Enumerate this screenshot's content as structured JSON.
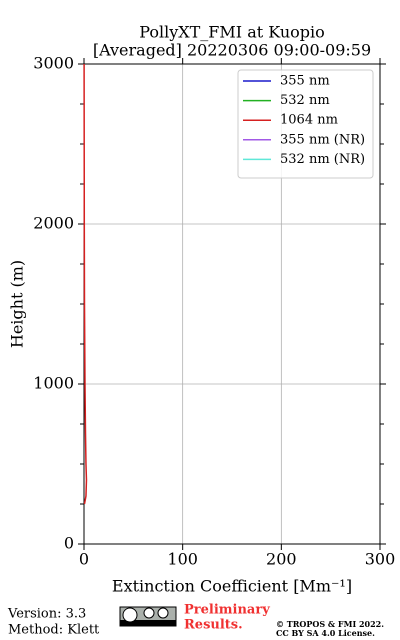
{
  "chart_data": {
    "type": "line",
    "title": "PollyXT_FMI at Kuopio",
    "subtitle": "[Averaged] 20220306 09:00-09:59",
    "xlabel": "Extinction Coefficient [Mm⁻¹]",
    "ylabel": "Height (m)",
    "y": [
      250,
      300,
      400,
      500,
      700,
      1000,
      1500,
      2000,
      2500,
      3000
    ],
    "series": [
      {
        "name": "355 nm",
        "color": "#1a1acc",
        "values": [
          null,
          null,
          null,
          null,
          null,
          null,
          null,
          null,
          null,
          null
        ]
      },
      {
        "name": "532 nm",
        "color": "#22b022",
        "values": [
          null,
          null,
          null,
          null,
          null,
          null,
          null,
          null,
          null,
          null
        ]
      },
      {
        "name": "1064 nm",
        "color": "#d62020",
        "values": [
          0.5,
          2,
          2.5,
          2,
          1.5,
          1,
          0.5,
          0.3,
          0.2,
          0.1
        ]
      },
      {
        "name": "355 nm (NR)",
        "color": "#a259e6",
        "values": [
          null,
          null,
          null,
          null,
          null,
          null,
          null,
          null,
          null,
          null
        ]
      },
      {
        "name": "532 nm (NR)",
        "color": "#5fe8d8",
        "values": [
          null,
          null,
          null,
          null,
          null,
          null,
          null,
          null,
          null,
          null
        ]
      }
    ],
    "xlim": [
      0,
      300
    ],
    "xticks": [
      0,
      100,
      200,
      300
    ],
    "ylim": [
      0,
      3000
    ],
    "yticks": [
      0,
      1000,
      2000,
      3000
    ],
    "yminorticks": [
      250,
      500,
      750,
      1250,
      1500,
      1750,
      2250,
      2500,
      2750
    ],
    "grid": true,
    "legend": "upper right"
  },
  "footer": {
    "version": "Version: 3.3",
    "method": "Method: Klett",
    "preliminary": [
      "Preliminary",
      "Results."
    ],
    "copyright": [
      "© TROPOS & FMI 2022.",
      "CC BY SA 4.0 License."
    ]
  }
}
